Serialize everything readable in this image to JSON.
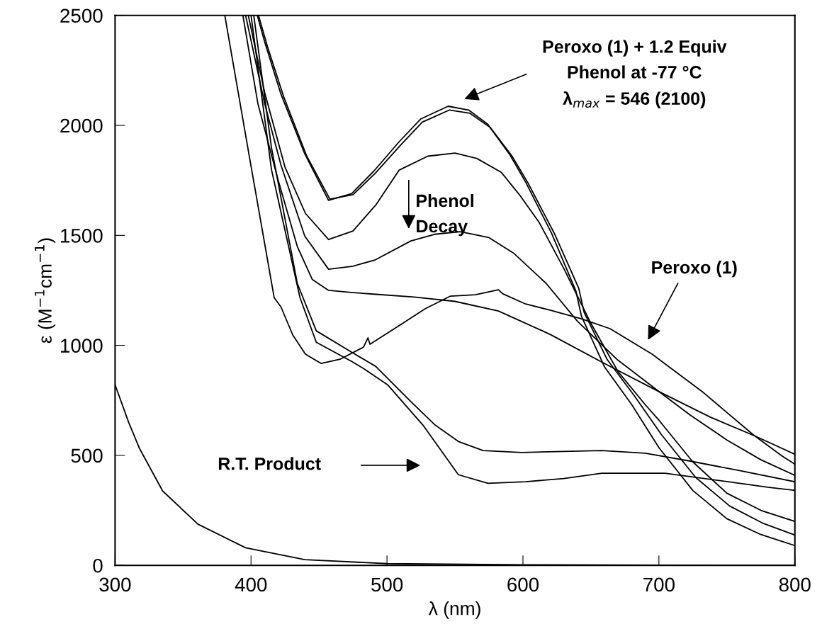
{
  "chart_data": {
    "type": "line",
    "xlabel": "λ (nm)",
    "ylabel": "ε (M$^{−1}$cm$^{−1}$)",
    "xlim": [
      300,
      800
    ],
    "ylim": [
      0,
      2500
    ],
    "xticks": [
      300,
      400,
      500,
      600,
      700,
      800
    ],
    "yticks": [
      0,
      500,
      1000,
      1500,
      2000,
      2500
    ],
    "annotations": [
      "Peroxo (1) + 1.2 Equiv\nPhenol at -77 °C\nλ$_{max}$ = 546 (2100)",
      "Phenol\nDecay",
      "Peroxo (1)",
      "R.T. Product"
    ],
    "series": [
      {
        "color": "#000000",
        "x": [
          404.6,
          410,
          422,
          439.5,
          457,
          474,
          490,
          509,
          525,
          545,
          560,
          574,
          590,
          602,
          621,
          639,
          643,
          660,
          680,
          700,
          725,
          750,
          775,
          800
        ],
        "values": [
          2500,
          2380,
          2142,
          1871,
          1659,
          1690,
          1790,
          1926,
          2030,
          2087,
          2070,
          2006,
          1870,
          1742,
          1510,
          1246,
          1133,
          902,
          731,
          535,
          340,
          212,
          140,
          90
        ]
      },
      {
        "color": "#000000",
        "x": [
          405.5,
          412,
          424,
          441,
          458,
          475,
          491,
          510,
          526,
          546,
          561,
          576,
          592,
          604,
          623,
          641,
          645,
          662,
          682,
          702,
          727,
          752,
          777,
          800
        ],
        "values": [
          2500,
          2360,
          2130,
          1860,
          1665,
          1685,
          1780,
          1910,
          2015,
          2070,
          2055,
          1990,
          1860,
          1735,
          1510,
          1260,
          1150,
          935,
          770,
          593,
          400,
          270,
          190,
          138
        ]
      },
      {
        "color": "#000000",
        "x": [
          398,
          410,
          425,
          440,
          457,
          475,
          492,
          509,
          530,
          550,
          566,
          584,
          598,
          612,
          630,
          650,
          670,
          690,
          700,
          725,
          750,
          775,
          800
        ],
        "values": [
          2500,
          2150,
          1810,
          1600,
          1481,
          1520,
          1640,
          1797,
          1860,
          1874,
          1850,
          1787,
          1680,
          1558,
          1350,
          1100,
          880,
          730,
          660,
          470,
          328,
          250,
          200
        ]
      },
      {
        "color": "#000000",
        "x": [
          396,
          410,
          422,
          439.5,
          457,
          475,
          491.5,
          517.6,
          535,
          554,
          575,
          593,
          617,
          640,
          669,
          700,
          723,
          750,
          775,
          800
        ],
        "values": [
          2500,
          2100,
          1820,
          1497,
          1346,
          1360,
          1389,
          1475,
          1505,
          1517,
          1490,
          1420,
          1282,
          1110,
          937,
          790,
          683,
          570,
          480,
          409
        ]
      },
      {
        "color": "#000000",
        "x": [
          394,
          405,
          420,
          434,
          445,
          457,
          475,
          490,
          520,
          550,
          582,
          620,
          658,
          700,
          738,
          770,
          800
        ],
        "values": [
          2500,
          2100,
          1750,
          1450,
          1300,
          1250,
          1240,
          1233,
          1220,
          1200,
          1156,
          1050,
          924,
          790,
          673,
          590,
          505
        ]
      },
      {
        "color": "#000000",
        "x": [
          380.7,
          399,
          417,
          422,
          430.7,
          440,
          451.5,
          465.5,
          482.7,
          486,
          487.5,
          508.7,
          528,
          546.7,
          565,
          582,
          585,
          602,
          620,
          643,
          664,
          695,
          732.6,
          769.5,
          790,
          795.6,
          800
        ],
        "values": [
          2500,
          1850,
          1217,
          1175,
          1047,
          960,
          918,
          937,
          992,
          1034,
          1005,
          1089,
          1166,
          1224,
          1230,
          1253,
          1235,
          1188,
          1160,
          1121,
          1076,
          960,
          786,
          593,
          500,
          477,
          460
        ]
      },
      {
        "color": "#000000",
        "x": [
          402,
          415,
          434,
          448,
          474,
          491.6,
          517.6,
          535,
          552.5,
          570.7,
          599,
          630,
          658,
          690,
          723,
          760,
          800
        ],
        "values": [
          2500,
          1900,
          1282,
          1066,
          969,
          905,
          744,
          640,
          563,
          522,
          513,
          518,
          522,
          510,
          474,
          430,
          380
        ]
      },
      {
        "color": "#000000",
        "x": [
          400,
          415,
          436,
          448,
          474,
          482.7,
          500.4,
          526.4,
          552.5,
          574.3,
          602,
          630,
          658,
          704.5,
          751,
          780,
          800
        ],
        "values": [
          2500,
          1800,
          1217,
          1014,
          927,
          895,
          821,
          638,
          412,
          373,
          380,
          395,
          419,
          419,
          380,
          355,
          341
        ]
      },
      {
        "color": "#000000",
        "x": [
          300,
          310,
          318,
          335,
          361,
          396,
          439.5,
          500,
          600,
          700,
          800
        ],
        "values": [
          821,
          650,
          531,
          338,
          187,
          80,
          26,
          8,
          3,
          1,
          0
        ]
      }
    ]
  }
}
